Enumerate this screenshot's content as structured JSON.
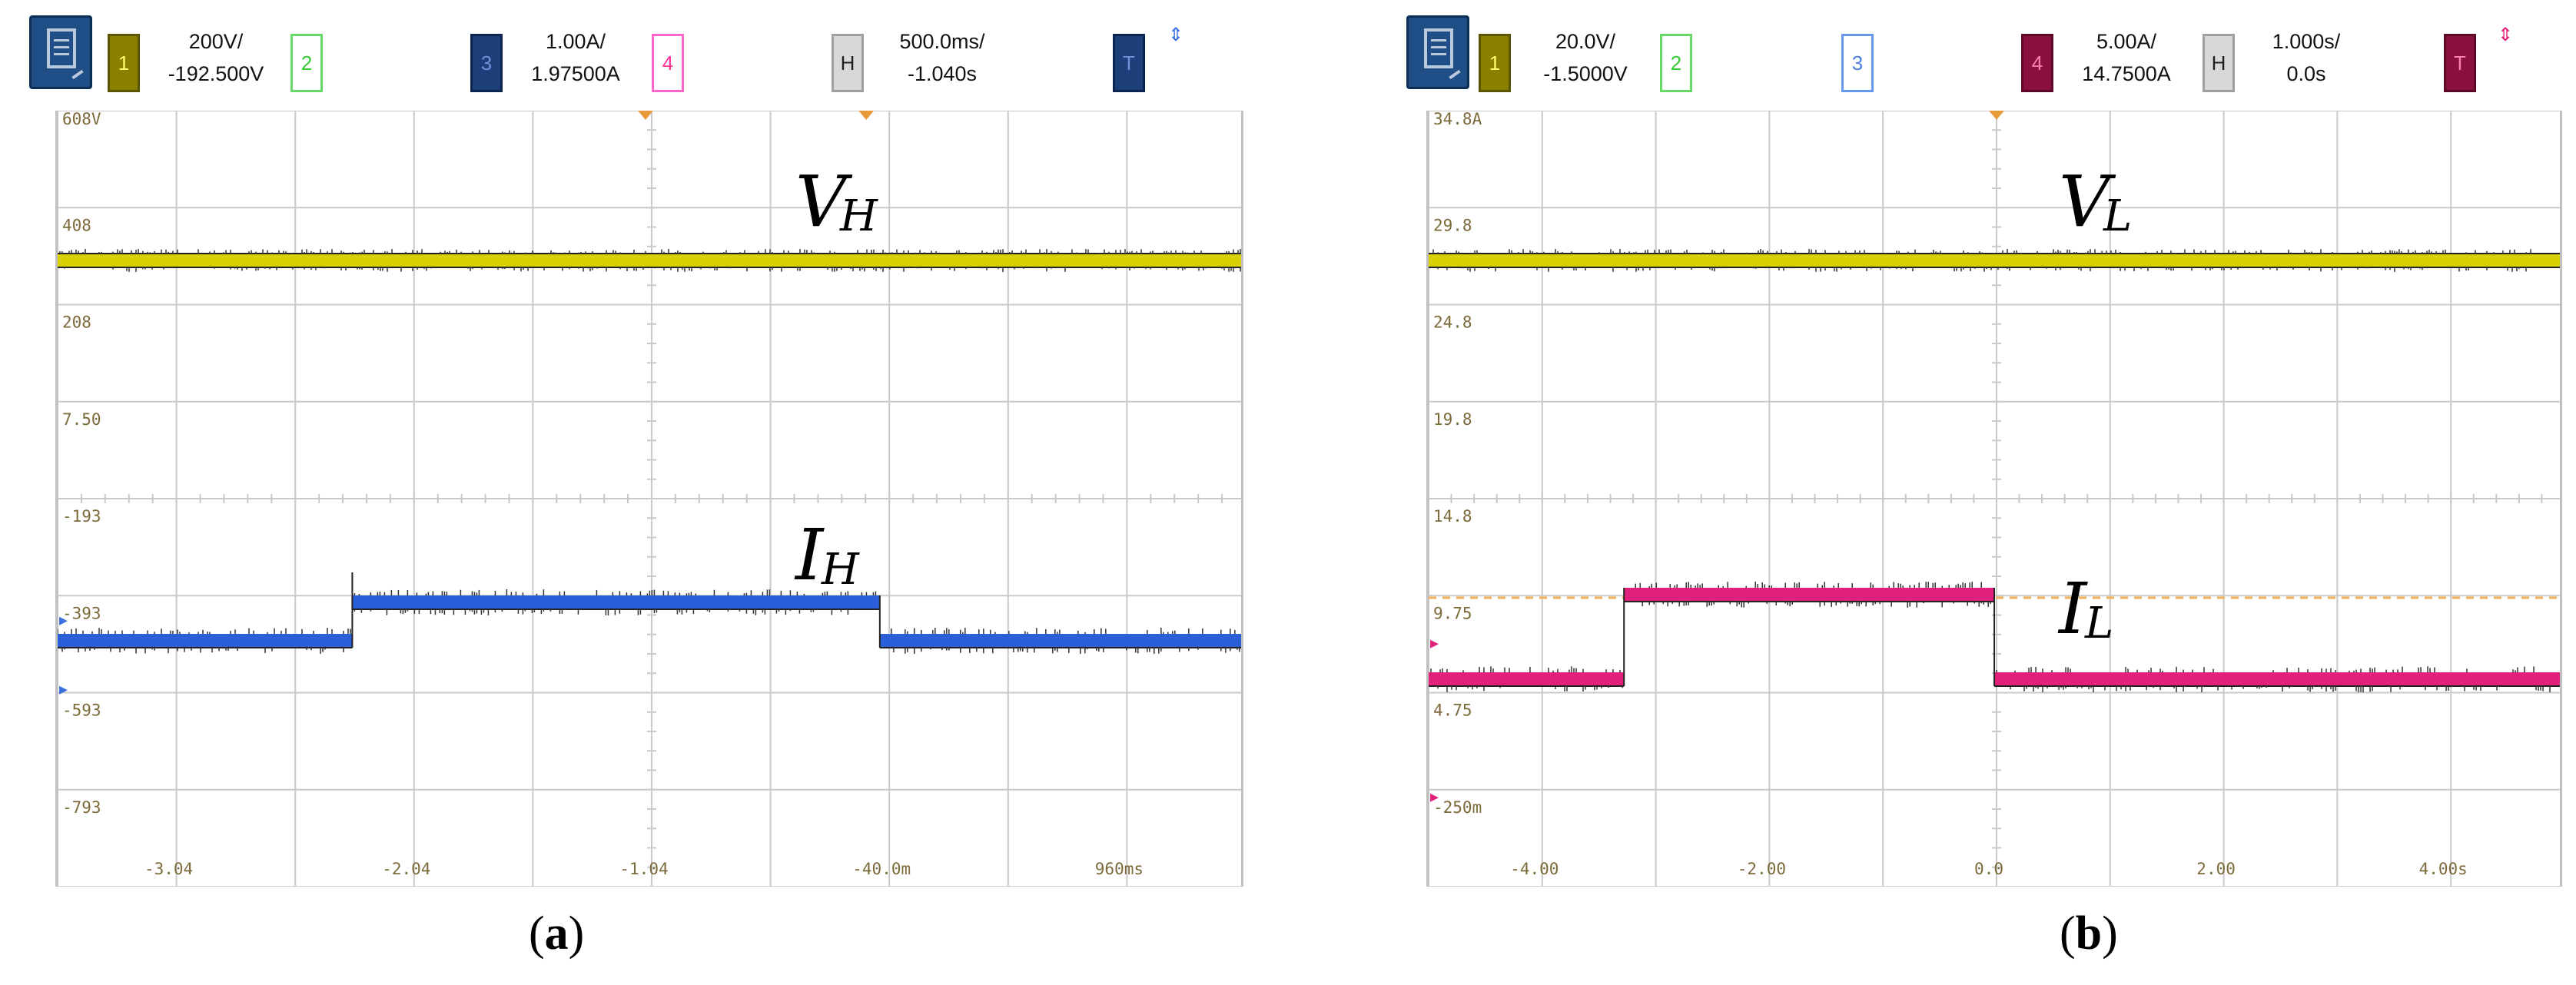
{
  "panel_a": {
    "caption_letter": "a",
    "ch1": {
      "label": "1",
      "scale": "200V/",
      "offset": "-192.500V"
    },
    "ch2": {
      "label": "2"
    },
    "ch3": {
      "label": "3",
      "scale": "1.00A/",
      "offset": "1.97500A"
    },
    "ch4": {
      "label": "4"
    },
    "horiz": {
      "label": "H",
      "scale": "500.0ms/",
      "offset": "-1.040s"
    },
    "trigger": {
      "label": "T"
    },
    "y_ticks": [
      "608V",
      "408",
      "208",
      "7.50",
      "-193",
      "-393",
      "-593",
      "-793"
    ],
    "x_ticks": [
      "-3.04",
      "-2.04",
      "-1.04",
      "-40.0m",
      "960ms"
    ],
    "voltage_label": {
      "main": "V",
      "sub": "H"
    },
    "current_label": {
      "main": "I",
      "sub": "H"
    },
    "colors": {
      "voltage": "#d8d000",
      "current": "#2b5fd9"
    }
  },
  "panel_b": {
    "caption_letter": "b",
    "ch1": {
      "label": "1",
      "scale": "20.0V/",
      "offset": "-1.5000V"
    },
    "ch2": {
      "label": "2"
    },
    "ch3": {
      "label": "3"
    },
    "ch4": {
      "label": "4",
      "scale": "5.00A/",
      "offset": "14.7500A"
    },
    "horiz": {
      "label": "H",
      "scale": "1.000s/",
      "offset": "0.0s"
    },
    "trigger": {
      "label": "T"
    },
    "y_ticks": [
      "34.8A",
      "29.8",
      "24.8",
      "19.8",
      "14.8",
      "9.75",
      "4.75",
      "-250m"
    ],
    "x_ticks": [
      "-4.00",
      "-2.00",
      "0.0",
      "2.00",
      "4.00s"
    ],
    "voltage_label": {
      "main": "V",
      "sub": "L"
    },
    "current_label": {
      "main": "I",
      "sub": "L"
    },
    "colors": {
      "voltage": "#d8d000",
      "current": "#e0207a",
      "trigger_level": "#f2b25a"
    }
  }
}
